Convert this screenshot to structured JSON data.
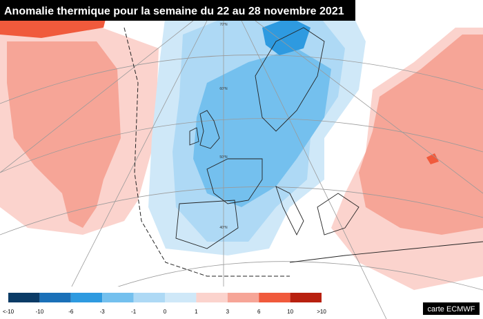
{
  "header": {
    "title": "Anomalie thermique pour la semaine du 22 au 28 novembre 2021"
  },
  "map": {
    "latitude_labels": [
      "70°N",
      "60°N",
      "50°N",
      "40°N"
    ]
  },
  "legend": {
    "labels": [
      "<-10",
      "-10",
      "-6",
      "-3",
      "-1",
      "0",
      "1",
      "3",
      "6",
      "10",
      ">10"
    ],
    "colors": [
      "#0b3b66",
      "#1a70b8",
      "#2e9ae0",
      "#74c0ee",
      "#aed9f5",
      "#cfe8f8",
      "#fbd3cd",
      "#f6a597",
      "#f05a3c",
      "#b8200f",
      "#5e0a0a"
    ]
  },
  "credit": "carte ECMWF"
}
